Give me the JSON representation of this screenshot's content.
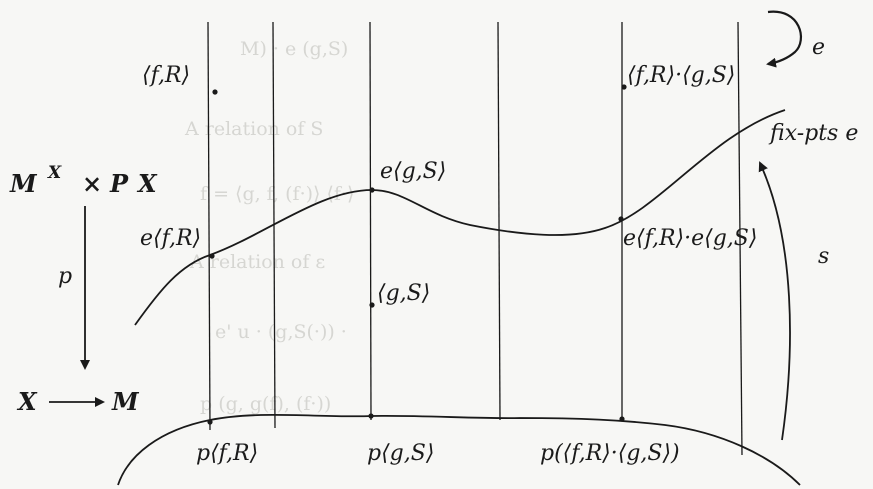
{
  "labels": {
    "fR_top": "⟨f,R⟩",
    "fR_dot_gS_top": "⟨f,R⟩·⟨g,S⟩",
    "e_arrow": "e",
    "fix_pts": "fix-pts e",
    "e_gS": "e⟨g,S⟩",
    "e_fR": "e⟨f,R⟩",
    "e_prod": "e⟨f,R⟩·e⟨g,S⟩",
    "gS_mid": "⟨g,S⟩",
    "s_arrow": "s",
    "p_arrow": "p",
    "bottom_X": "X",
    "bottom_M": "M",
    "p_fR": "p⟨f,R⟩",
    "p_gS": "p⟨g,S⟩",
    "p_prod": "p(⟨f,R⟩·⟨g,S⟩)"
  },
  "product_space": {
    "M": "M",
    "X_sup": "X",
    "times": "×",
    "P": "P",
    "X": "X"
  },
  "colors": {
    "ink": "#1a1a1a",
    "paper": "#f7f7f5",
    "ghost_text": "#d6d6d2"
  }
}
